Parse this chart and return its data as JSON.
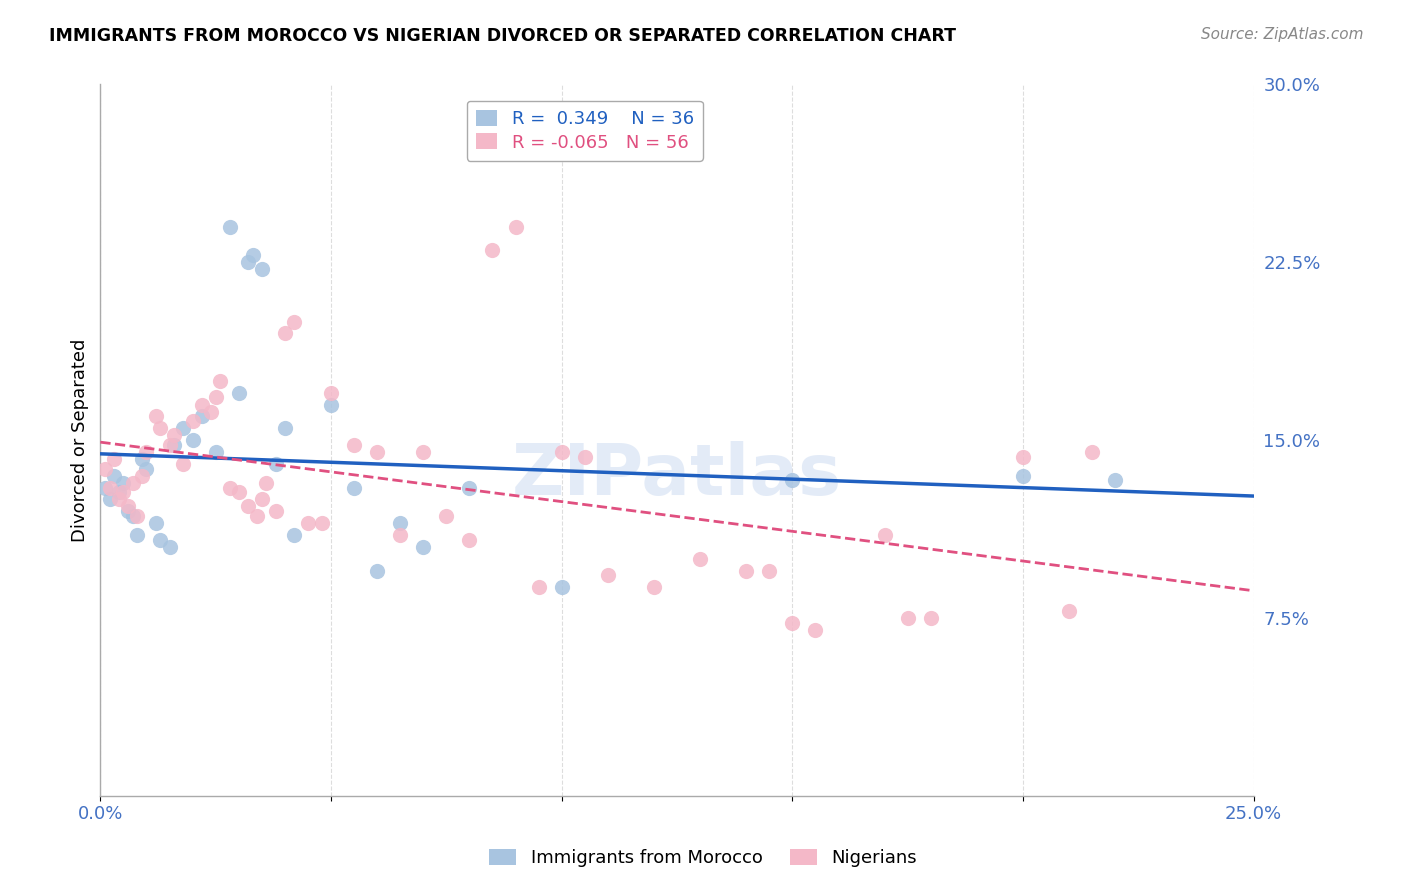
{
  "title": "IMMIGRANTS FROM MOROCCO VS NIGERIAN DIVORCED OR SEPARATED CORRELATION CHART",
  "source": "Source: ZipAtlas.com",
  "ylabel": "Divorced or Separated",
  "xlabel": "",
  "watermark": "ZIPatlas",
  "xlim": [
    0.0,
    0.25
  ],
  "ylim": [
    0.0,
    0.3
  ],
  "morocco_R": 0.349,
  "morocco_N": 36,
  "nigeria_R": -0.065,
  "nigeria_N": 56,
  "morocco_color": "#a8c4e0",
  "nigeria_color": "#f4b8c8",
  "morocco_line_color": "#2060c0",
  "nigeria_line_color": "#e05080",
  "morocco_scatter": [
    [
      0.001,
      0.13
    ],
    [
      0.002,
      0.125
    ],
    [
      0.003,
      0.135
    ],
    [
      0.004,
      0.128
    ],
    [
      0.005,
      0.132
    ],
    [
      0.006,
      0.12
    ],
    [
      0.007,
      0.118
    ],
    [
      0.008,
      0.11
    ],
    [
      0.009,
      0.142
    ],
    [
      0.01,
      0.138
    ],
    [
      0.012,
      0.115
    ],
    [
      0.013,
      0.108
    ],
    [
      0.015,
      0.105
    ],
    [
      0.016,
      0.148
    ],
    [
      0.018,
      0.155
    ],
    [
      0.02,
      0.15
    ],
    [
      0.022,
      0.16
    ],
    [
      0.025,
      0.145
    ],
    [
      0.028,
      0.24
    ],
    [
      0.03,
      0.17
    ],
    [
      0.032,
      0.225
    ],
    [
      0.033,
      0.228
    ],
    [
      0.035,
      0.222
    ],
    [
      0.038,
      0.14
    ],
    [
      0.04,
      0.155
    ],
    [
      0.042,
      0.11
    ],
    [
      0.05,
      0.165
    ],
    [
      0.055,
      0.13
    ],
    [
      0.06,
      0.095
    ],
    [
      0.065,
      0.115
    ],
    [
      0.07,
      0.105
    ],
    [
      0.08,
      0.13
    ],
    [
      0.1,
      0.088
    ],
    [
      0.15,
      0.133
    ],
    [
      0.2,
      0.135
    ],
    [
      0.22,
      0.133
    ]
  ],
  "nigeria_scatter": [
    [
      0.001,
      0.138
    ],
    [
      0.002,
      0.13
    ],
    [
      0.003,
      0.142
    ],
    [
      0.004,
      0.125
    ],
    [
      0.005,
      0.128
    ],
    [
      0.006,
      0.122
    ],
    [
      0.007,
      0.132
    ],
    [
      0.008,
      0.118
    ],
    [
      0.009,
      0.135
    ],
    [
      0.01,
      0.145
    ],
    [
      0.012,
      0.16
    ],
    [
      0.013,
      0.155
    ],
    [
      0.015,
      0.148
    ],
    [
      0.016,
      0.152
    ],
    [
      0.018,
      0.14
    ],
    [
      0.02,
      0.158
    ],
    [
      0.022,
      0.165
    ],
    [
      0.024,
      0.162
    ],
    [
      0.025,
      0.168
    ],
    [
      0.026,
      0.175
    ],
    [
      0.028,
      0.13
    ],
    [
      0.03,
      0.128
    ],
    [
      0.032,
      0.122
    ],
    [
      0.034,
      0.118
    ],
    [
      0.035,
      0.125
    ],
    [
      0.036,
      0.132
    ],
    [
      0.038,
      0.12
    ],
    [
      0.04,
      0.195
    ],
    [
      0.042,
      0.2
    ],
    [
      0.045,
      0.115
    ],
    [
      0.048,
      0.115
    ],
    [
      0.05,
      0.17
    ],
    [
      0.055,
      0.148
    ],
    [
      0.06,
      0.145
    ],
    [
      0.065,
      0.11
    ],
    [
      0.07,
      0.145
    ],
    [
      0.075,
      0.118
    ],
    [
      0.08,
      0.108
    ],
    [
      0.085,
      0.23
    ],
    [
      0.09,
      0.24
    ],
    [
      0.095,
      0.088
    ],
    [
      0.1,
      0.145
    ],
    [
      0.105,
      0.143
    ],
    [
      0.11,
      0.093
    ],
    [
      0.12,
      0.088
    ],
    [
      0.13,
      0.1
    ],
    [
      0.14,
      0.095
    ],
    [
      0.145,
      0.095
    ],
    [
      0.15,
      0.073
    ],
    [
      0.155,
      0.07
    ],
    [
      0.17,
      0.11
    ],
    [
      0.175,
      0.075
    ],
    [
      0.18,
      0.075
    ],
    [
      0.2,
      0.143
    ],
    [
      0.21,
      0.078
    ],
    [
      0.215,
      0.145
    ]
  ],
  "tick_label_color": "#4472c4",
  "grid_color": "#dddddd"
}
